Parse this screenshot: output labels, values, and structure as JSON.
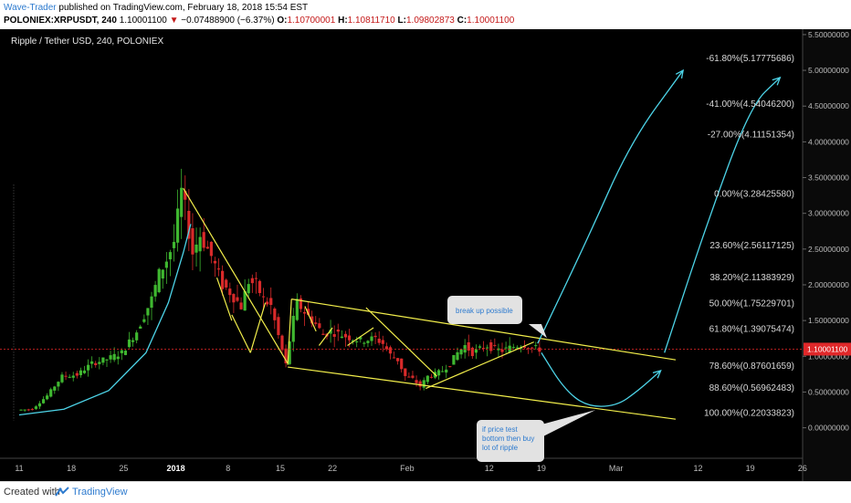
{
  "header": {
    "author": "Wave-Trader",
    "published_text": "published on TradingView.com, February 18, 2018 15:54 EST",
    "symbol": "POLONIEX:XRPUSDT, 240",
    "last": "1.10001100",
    "change_arrow": "▼",
    "change": "−0.07488900 (−6.37%)",
    "o_label": "O:",
    "o_value": "1.10700001",
    "h_label": "H:",
    "h_value": "1.10811710",
    "l_label": "L:",
    "l_value": "1.09802873",
    "c_label": "C:",
    "c_value": "1.10001100"
  },
  "footer": {
    "created_with": "Created with",
    "brand": "TradingView"
  },
  "colors": {
    "background": "#000000",
    "candle_up": "#3fb830",
    "candle_down": "#d92a2a",
    "trendline": "#f2ee4b",
    "projection": "#4dd4e8",
    "price_line": "#cc2222",
    "fib_text": "#d8d8d8",
    "axis_text": "#bbbbbb",
    "price_badge": "#e0282a"
  },
  "chart_data": {
    "type": "candlestick",
    "title": "Ripple / Tether USD, 240, POLONIEX",
    "ylim": [
      -0.35,
      5.55
    ],
    "y_ticks": [
      "0.00000000",
      "0.50000000",
      "1.00000000",
      "1.50000000",
      "2.00000000",
      "2.50000000",
      "3.00000000",
      "3.50000000",
      "4.00000000",
      "4.50000000",
      "5.00000000",
      "5.50000000"
    ],
    "y_tick_values": [
      0,
      0.5,
      1,
      1.5,
      2,
      2.5,
      3,
      3.5,
      4,
      4.5,
      5,
      5.5
    ],
    "x_ticks": [
      "11",
      "18",
      "25",
      "2018",
      "8",
      "15",
      "22",
      "Feb",
      "12",
      "19",
      "Mar",
      "12",
      "19",
      "26"
    ],
    "x_tick_days": [
      0,
      7,
      14,
      21,
      28,
      35,
      42,
      52,
      63,
      70,
      80,
      91,
      98,
      105
    ],
    "x_axis_note": "day offsets from Dec 11, 2017",
    "current_price": "1.10001100",
    "current_price_value": 1.100011,
    "price_path": [
      [
        0,
        0.25
      ],
      [
        2,
        0.26
      ],
      [
        4,
        0.45
      ],
      [
        6,
        0.72
      ],
      [
        8,
        0.74
      ],
      [
        10,
        0.9
      ],
      [
        12,
        0.96
      ],
      [
        14,
        1.05
      ],
      [
        16,
        1.35
      ],
      [
        18,
        1.8
      ],
      [
        19,
        2.15
      ],
      [
        20,
        2.35
      ],
      [
        21,
        2.6
      ],
      [
        22,
        3.3
      ],
      [
        22.6,
        3.0
      ],
      [
        23.5,
        2.45
      ],
      [
        24.5,
        2.7
      ],
      [
        26,
        2.4
      ],
      [
        27.5,
        2.0
      ],
      [
        28.5,
        1.9
      ],
      [
        30,
        1.7
      ],
      [
        31,
        2.05
      ],
      [
        32,
        2.0
      ],
      [
        33,
        1.8
      ],
      [
        34,
        1.7
      ],
      [
        35.2,
        1.2
      ],
      [
        36,
        0.88
      ],
      [
        36.8,
        1.42
      ],
      [
        37.5,
        1.75
      ],
      [
        38.5,
        1.62
      ],
      [
        40,
        1.45
      ],
      [
        41,
        1.3
      ],
      [
        42,
        1.35
      ],
      [
        44,
        1.28
      ],
      [
        46,
        1.22
      ],
      [
        48,
        1.25
      ],
      [
        49,
        1.18
      ],
      [
        50,
        1.02
      ],
      [
        51,
        0.95
      ],
      [
        52,
        0.72
      ],
      [
        53,
        0.68
      ],
      [
        54,
        0.58
      ],
      [
        55,
        0.72
      ],
      [
        56,
        0.75
      ],
      [
        57,
        0.8
      ],
      [
        58,
        0.9
      ],
      [
        59,
        1.05
      ],
      [
        60,
        1.15
      ],
      [
        61,
        1.05
      ],
      [
        62,
        1.1
      ],
      [
        63,
        1.15
      ],
      [
        64,
        1.1
      ],
      [
        65,
        1.08
      ],
      [
        66,
        1.12
      ],
      [
        67,
        1.15
      ],
      [
        68,
        1.16
      ],
      [
        69,
        1.12
      ],
      [
        70,
        1.1
      ]
    ],
    "fib_levels": [
      {
        "label": "-61.80%(5.17775686)",
        "value": 5.17775686
      },
      {
        "label": "-41.00%(4.54046200)",
        "value": 4.540462
      },
      {
        "label": "-27.00%(4.11151354)",
        "value": 4.11151354
      },
      {
        "label": "0.00%(3.28425580)",
        "value": 3.2842558
      },
      {
        "label": "23.60%(2.56117125)",
        "value": 2.56117125
      },
      {
        "label": "38.20%(2.11383929)",
        "value": 2.11383929
      },
      {
        "label": "50.00%(1.75229701)",
        "value": 1.75229701
      },
      {
        "label": "61.80%(1.39075474)",
        "value": 1.39075474
      },
      {
        "label": "78.60%(0.87601659)",
        "value": 0.87601659
      },
      {
        "label": "88.60%(0.56962483)",
        "value": 0.56962483
      },
      {
        "label": "100.00%(0.22033823)",
        "value": 0.22033823
      }
    ],
    "trendlines": [
      [
        [
          22,
          3.35
        ],
        [
          36,
          0.9
        ]
      ],
      [
        [
          26.5,
          2.1
        ],
        [
          28.5,
          1.5
        ]
      ],
      [
        [
          28.5,
          1.58
        ],
        [
          31,
          1.05
        ]
      ],
      [
        [
          31,
          1.05
        ],
        [
          33,
          1.75
        ]
      ],
      [
        [
          36,
          0.88
        ],
        [
          36.5,
          1.8
        ]
      ],
      [
        [
          36.5,
          1.8
        ],
        [
          88,
          0.95
        ]
      ],
      [
        [
          36,
          0.85
        ],
        [
          88,
          0.12
        ]
      ],
      [
        [
          38.3,
          1.7
        ],
        [
          39.8,
          1.35
        ]
      ],
      [
        [
          40.2,
          1.15
        ],
        [
          42,
          1.4
        ]
      ],
      [
        [
          44,
          1.15
        ],
        [
          47.5,
          1.4
        ]
      ],
      [
        [
          46.5,
          1.68
        ],
        [
          56,
          0.72
        ]
      ],
      [
        [
          54.5,
          0.55
        ],
        [
          69,
          1.2
        ]
      ]
    ],
    "projections": [
      {
        "points": [
          [
            69.5,
            1.18
          ],
          [
            76,
            2.6
          ],
          [
            82,
            4.0
          ],
          [
            89,
            5.0
          ]
        ],
        "arrow": true
      },
      {
        "points": [
          [
            70,
            1.05
          ],
          [
            73,
            0.55
          ],
          [
            76,
            0.3
          ],
          [
            80,
            0.3
          ],
          [
            83,
            0.52
          ],
          [
            86,
            0.8
          ]
        ],
        "arrow": true
      },
      {
        "points": [
          [
            86.5,
            1.05
          ],
          [
            92,
            2.8
          ],
          [
            98,
            4.5
          ],
          [
            102,
            4.9
          ]
        ],
        "arrow": true
      }
    ],
    "base_curve": [
      [
        0,
        0.18
      ],
      [
        6,
        0.26
      ],
      [
        12,
        0.52
      ],
      [
        17,
        1.05
      ],
      [
        20,
        1.75
      ],
      [
        22,
        2.45
      ],
      [
        23,
        2.85
      ]
    ],
    "callouts": [
      {
        "text": "break up possible",
        "anchor": [
          70,
          1.18
        ]
      },
      {
        "lines": [
          "if price test",
          "bottom then buy",
          "lot of ripple"
        ],
        "anchor": [
          77,
          0.3
        ]
      }
    ]
  }
}
